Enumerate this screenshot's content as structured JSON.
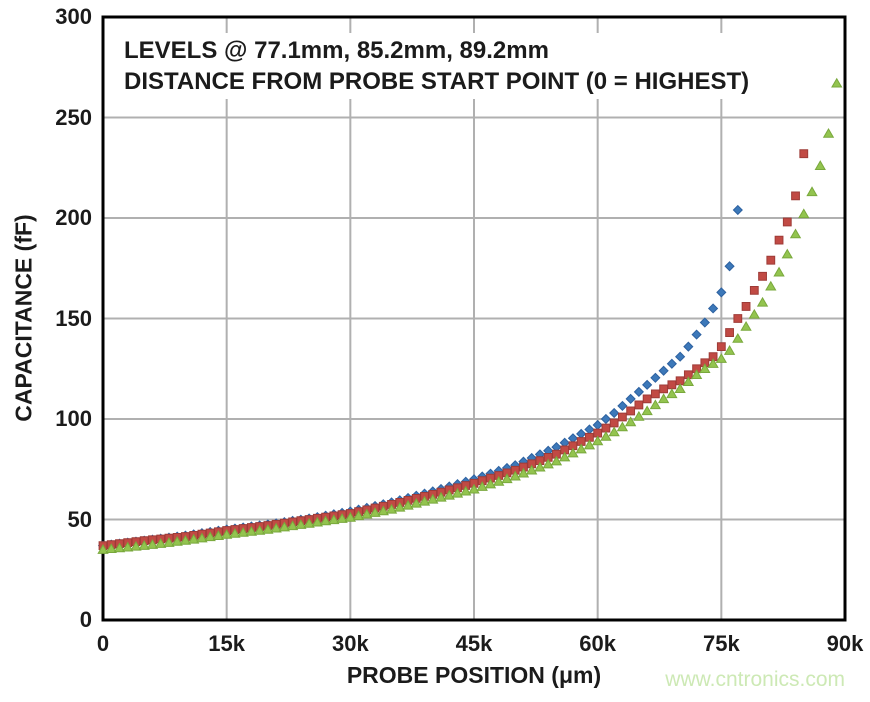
{
  "annotation": {
    "line1": "LEVELS @ 77.1mm, 85.2mm, 89.2mm",
    "line2": "DISTANCE FROM PROBE START POINT (0 = HIGHEST)"
  },
  "watermark": {
    "text": "www.cntronics.com",
    "color": "#cde9b5"
  },
  "colors": {
    "text": "#1b1b1b",
    "gridline": "#b0b0b0",
    "plot_border": "#000000",
    "background": "#ffffff"
  },
  "chart_data": {
    "type": "scatter",
    "title": "",
    "xlabel": "PROBE POSITION (μm)",
    "ylabel": "CAPACITANCE (fF)",
    "xlim": [
      0,
      90000
    ],
    "ylim": [
      0,
      300
    ],
    "grid": true,
    "legend": "none",
    "x_ticks": [
      {
        "value": 0,
        "label": "0"
      },
      {
        "value": 15000,
        "label": "15k"
      },
      {
        "value": 30000,
        "label": "30k"
      },
      {
        "value": 45000,
        "label": "45k"
      },
      {
        "value": 60000,
        "label": "60k"
      },
      {
        "value": 75000,
        "label": "75k"
      },
      {
        "value": 90000,
        "label": "90k"
      }
    ],
    "y_ticks": [
      {
        "value": 0,
        "label": "0"
      },
      {
        "value": 50,
        "label": "50"
      },
      {
        "value": 100,
        "label": "100"
      },
      {
        "value": 150,
        "label": "150"
      },
      {
        "value": 200,
        "label": "200"
      },
      {
        "value": 250,
        "label": "250"
      },
      {
        "value": 300,
        "label": "300"
      }
    ],
    "marker_step_um": 1000,
    "series": [
      {
        "name": "level 77.1mm",
        "level_mm": 77.1,
        "marker": "diamond",
        "color": "#3c78b9",
        "edge_color": "#2d61a0",
        "x_end_um": 77000,
        "anchors_um_fF": [
          [
            0,
            37
          ],
          [
            5000,
            39.5
          ],
          [
            10000,
            42
          ],
          [
            15000,
            45
          ],
          [
            20000,
            47.5
          ],
          [
            25000,
            50.5
          ],
          [
            30000,
            54
          ],
          [
            35000,
            58.5
          ],
          [
            40000,
            64
          ],
          [
            45000,
            70
          ],
          [
            50000,
            77
          ],
          [
            55000,
            86
          ],
          [
            60000,
            97
          ],
          [
            62000,
            103
          ],
          [
            64000,
            110
          ],
          [
            66000,
            117
          ],
          [
            68000,
            124
          ],
          [
            70000,
            131
          ],
          [
            71000,
            136
          ],
          [
            72000,
            142
          ],
          [
            73000,
            148
          ],
          [
            74000,
            155
          ],
          [
            75000,
            163
          ],
          [
            76000,
            176
          ],
          [
            77000,
            204
          ]
        ]
      },
      {
        "name": "level 85.2mm",
        "level_mm": 85.2,
        "marker": "square",
        "color": "#c14a44",
        "edge_color": "#9e3b37",
        "x_end_um": 85000,
        "anchors_um_fF": [
          [
            0,
            37
          ],
          [
            5000,
            39.5
          ],
          [
            10000,
            41.5
          ],
          [
            15000,
            44.5
          ],
          [
            20000,
            47
          ],
          [
            25000,
            50
          ],
          [
            30000,
            53
          ],
          [
            35000,
            57.5
          ],
          [
            40000,
            62.5
          ],
          [
            45000,
            68
          ],
          [
            50000,
            74.5
          ],
          [
            55000,
            82.5
          ],
          [
            60000,
            93
          ],
          [
            62000,
            98
          ],
          [
            64000,
            104
          ],
          [
            66000,
            110
          ],
          [
            68000,
            115
          ],
          [
            70000,
            119
          ],
          [
            71000,
            122
          ],
          [
            72000,
            125
          ],
          [
            73000,
            128
          ],
          [
            74000,
            131
          ],
          [
            75000,
            136
          ],
          [
            76000,
            143
          ],
          [
            77000,
            150
          ],
          [
            78000,
            156
          ],
          [
            79000,
            164
          ],
          [
            80000,
            171
          ],
          [
            81000,
            179
          ],
          [
            82000,
            189
          ],
          [
            83000,
            198
          ],
          [
            84000,
            211
          ],
          [
            85000,
            232
          ]
        ]
      },
      {
        "name": "level 89.2mm",
        "level_mm": 89.2,
        "marker": "triangle",
        "color": "#93c44f",
        "edge_color": "#79a83c",
        "x_end_um": 89000,
        "anchors_um_fF": [
          [
            0,
            35
          ],
          [
            5000,
            37
          ],
          [
            10000,
            39.5
          ],
          [
            15000,
            42.5
          ],
          [
            20000,
            45
          ],
          [
            25000,
            48
          ],
          [
            30000,
            51
          ],
          [
            35000,
            55
          ],
          [
            40000,
            60
          ],
          [
            45000,
            65
          ],
          [
            50000,
            71.5
          ],
          [
            55000,
            79
          ],
          [
            60000,
            89
          ],
          [
            62000,
            93.5
          ],
          [
            64000,
            98.5
          ],
          [
            66000,
            104
          ],
          [
            68000,
            110
          ],
          [
            70000,
            115
          ],
          [
            71000,
            118.5
          ],
          [
            72000,
            122
          ],
          [
            73000,
            125
          ],
          [
            74000,
            127.5
          ],
          [
            75000,
            130
          ],
          [
            76000,
            134
          ],
          [
            77000,
            140
          ],
          [
            78000,
            146
          ],
          [
            79000,
            152
          ],
          [
            80000,
            158
          ],
          [
            81000,
            166
          ],
          [
            82000,
            173
          ],
          [
            83000,
            182
          ],
          [
            84000,
            192
          ],
          [
            85000,
            202
          ],
          [
            86000,
            213
          ],
          [
            87000,
            226
          ],
          [
            88000,
            242
          ],
          [
            89000,
            267
          ]
        ]
      }
    ]
  }
}
